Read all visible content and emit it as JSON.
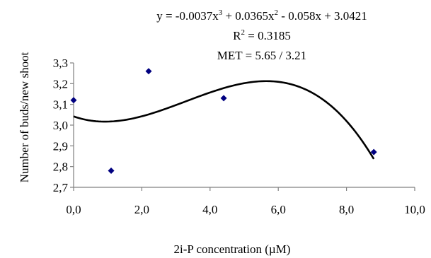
{
  "chart_data": {
    "type": "scatter",
    "xlabel": "2i-P concentration (µM)",
    "ylabel": "Number of buds/new shoot",
    "xlim": [
      0,
      10
    ],
    "ylim": [
      2.7,
      3.3
    ],
    "x_ticks": [
      "0,0",
      "2,0",
      "4,0",
      "6,0",
      "8,0",
      "10,0"
    ],
    "y_ticks": [
      "2,7",
      "2,8",
      "2,9",
      "3,0",
      "3,1",
      "3,2",
      "3,3"
    ],
    "grid": false,
    "series": [
      {
        "marker": "diamond",
        "color": "#000080",
        "points": [
          {
            "x": 0.0,
            "y": 3.12
          },
          {
            "x": 1.1,
            "y": 2.78
          },
          {
            "x": 2.2,
            "y": 3.26
          },
          {
            "x": 4.4,
            "y": 3.13
          },
          {
            "x": 8.8,
            "y": 2.87
          }
        ]
      }
    ],
    "trendline": {
      "type": "polynomial",
      "order": 3,
      "coefficients": [
        -0.0037,
        0.0365,
        -0.058,
        3.0421
      ],
      "x_range": [
        0,
        8.8
      ],
      "color": "#000000"
    },
    "annotations": [
      {
        "id": "equation",
        "text_parts": [
          "y = -0.0037x",
          "3",
          " + 0.0365x",
          "2",
          " - 0.058x + 3.0421"
        ]
      },
      {
        "id": "r_squared",
        "text_parts": [
          "R",
          "2",
          " = 0.3185"
        ]
      },
      {
        "id": "met",
        "text": "MET = 5.65 / 3.21"
      }
    ]
  }
}
